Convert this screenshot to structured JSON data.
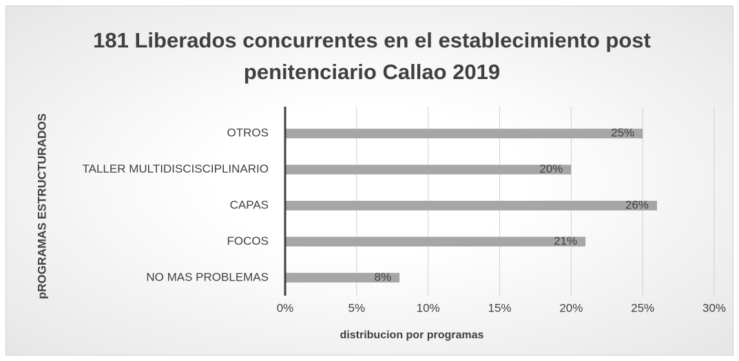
{
  "chart_data": {
    "type": "bar",
    "orientation": "horizontal",
    "title": "181 Liberados concurrentes en el establecimiento post penitenciario Callao 2019",
    "xlabel": "distribucion por programas",
    "ylabel": "pROGRAMAS ESTRUCTURADOS",
    "categories": [
      "OTROS",
      "TALLER MULTIDISCISCIPLINARIO",
      "CAPAS",
      "FOCOS",
      "NO MAS PROBLEMAS"
    ],
    "values": [
      25,
      20,
      26,
      21,
      8
    ],
    "value_labels": [
      "25%",
      "20%",
      "26%",
      "21%",
      "8%"
    ],
    "color": "#a6a6a6",
    "xlim": [
      0,
      30
    ],
    "xticks": [
      {
        "value": 0,
        "label": "0%"
      },
      {
        "value": 5,
        "label": "5%"
      },
      {
        "value": 10,
        "label": "10%"
      },
      {
        "value": 15,
        "label": "15%"
      },
      {
        "value": 20,
        "label": "20%"
      },
      {
        "value": 25,
        "label": "25%"
      },
      {
        "value": 30,
        "label": "30%"
      }
    ],
    "grid": true
  }
}
